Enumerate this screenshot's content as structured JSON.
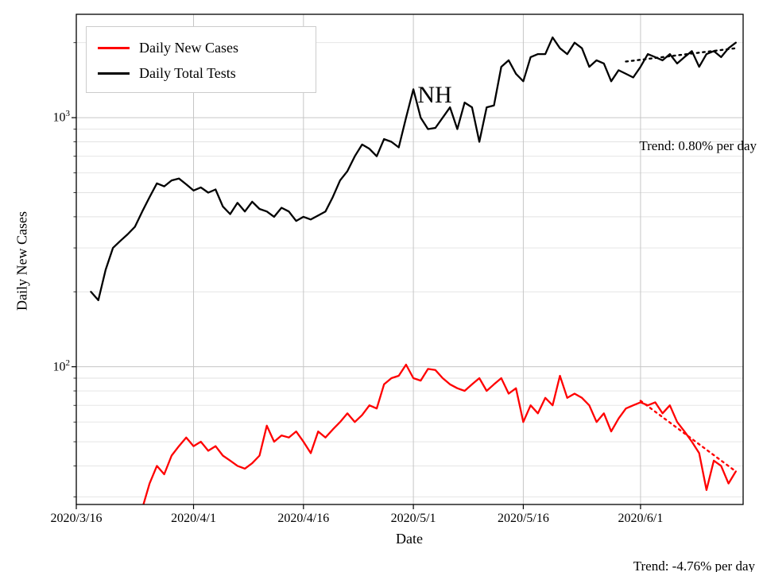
{
  "chart_data": {
    "type": "line",
    "title": "NH",
    "xlabel": "Date",
    "ylabel": "Daily New Cases",
    "yscale": "log",
    "ylim": [
      28,
      2600
    ],
    "x_range": [
      "2020/3/16",
      "2020/6/15"
    ],
    "x_ticks": [
      "2020/3/16",
      "2020/4/1",
      "2020/4/16",
      "2020/5/1",
      "2020/5/16",
      "2020/6/1"
    ],
    "y_ticks": [
      100,
      1000
    ],
    "grid": true,
    "legend_position": "upper left",
    "colors": {
      "daily_new_cases": "#ff0000",
      "daily_total_tests": "#000000",
      "grid_major": "#c6c6c6",
      "grid_minor": "#e2e2e2"
    },
    "series": [
      {
        "name": "Daily New Cases",
        "color": "#ff0000",
        "start": "2020/3/25",
        "step_days": 1,
        "values": [
          27,
          34,
          40,
          37,
          44,
          48,
          52,
          48,
          50,
          46,
          48,
          44,
          42,
          40,
          39,
          41,
          44,
          58,
          50,
          53,
          52,
          55,
          50,
          45,
          55,
          52,
          56,
          60,
          65,
          60,
          64,
          70,
          68,
          85,
          90,
          92,
          102,
          90,
          88,
          98,
          97,
          90,
          85,
          82,
          80,
          85,
          90,
          80,
          85,
          90,
          78,
          82,
          60,
          70,
          65,
          75,
          70,
          92,
          75,
          78,
          75,
          70,
          60,
          65,
          55,
          62,
          68,
          70,
          72,
          70,
          72,
          65,
          70,
          60,
          55,
          50,
          45,
          32,
          42,
          40,
          34,
          38
        ]
      },
      {
        "name": "Daily Total Tests",
        "color": "#000000",
        "start": "2020/3/18",
        "step_days": 1,
        "values": [
          200,
          185,
          245,
          300,
          320,
          340,
          365,
          420,
          480,
          545,
          530,
          560,
          570,
          540,
          510,
          525,
          500,
          515,
          440,
          410,
          455,
          420,
          460,
          430,
          420,
          400,
          435,
          420,
          385,
          400,
          390,
          405,
          420,
          480,
          560,
          610,
          700,
          780,
          750,
          700,
          820,
          800,
          760,
          1000,
          1300,
          1000,
          900,
          910,
          1000,
          1100,
          900,
          1150,
          1100,
          800,
          1100,
          1120,
          1600,
          1700,
          1500,
          1400,
          1750,
          1800,
          1800,
          2100,
          1900,
          1800,
          2000,
          1900,
          1600,
          1700,
          1650,
          1400,
          1550,
          1500,
          1450,
          1600,
          1800,
          1750,
          1700,
          1800,
          1650,
          1750,
          1850,
          1600,
          1800,
          1850,
          1750,
          1900,
          2000
        ]
      }
    ],
    "trend_lines": [
      {
        "series": "Daily Total Tests",
        "color": "#000000",
        "start": "2020/5/30",
        "start_value": 1680,
        "end": "2020/6/14",
        "end_value": 1900,
        "rate": "0.80% per day"
      },
      {
        "series": "Daily New Cases",
        "color": "#ff0000",
        "start": "2020/6/1",
        "start_value": 73,
        "end": "2020/6/14",
        "end_value": 38,
        "rate": "-4.76% per day"
      }
    ],
    "annotations": [
      {
        "text": "Trend: 0.80% per day"
      },
      {
        "text": "Trend: -4.76% per day"
      }
    ]
  }
}
